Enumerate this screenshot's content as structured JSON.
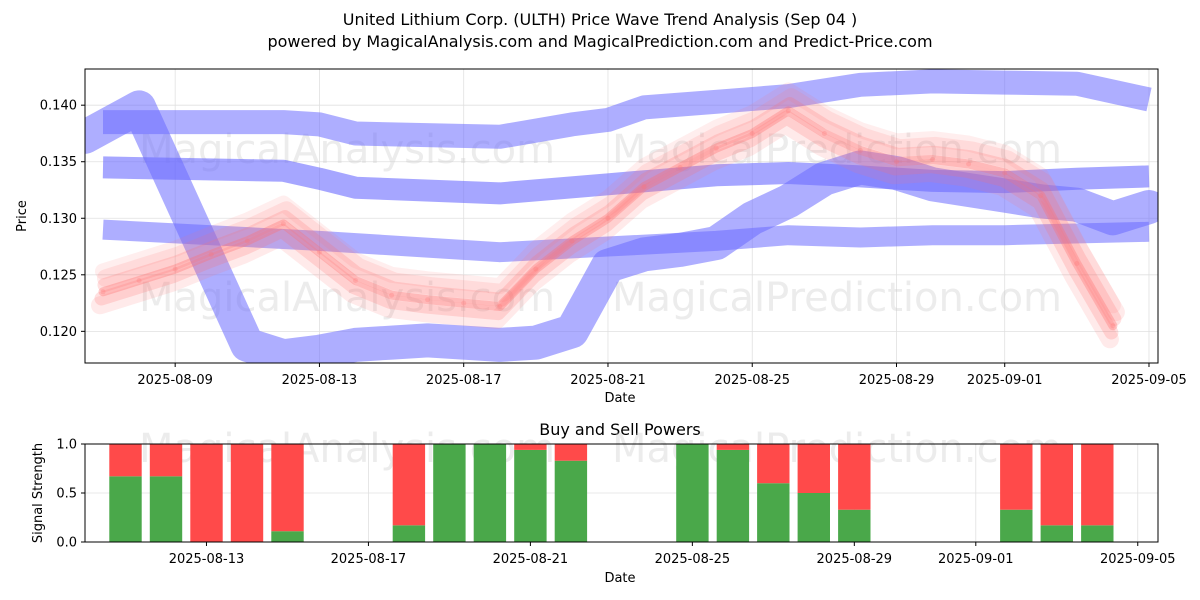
{
  "title_line1": "United Lithium Corp. (ULTH) Price Wave Trend Analysis (Sep 04 )",
  "title_line2": "powered by MagicalAnalysis.com and MagicalPrediction.com and Predict-Price.com",
  "watermarks": [
    "MagicalAnalysis.com",
    "MagicalPrediction.com"
  ],
  "colors": {
    "buy": "#4aa84a",
    "sell": "#ff4a4a",
    "band": "#6b6bff",
    "wave": "#ff7070"
  },
  "chart_data": [
    {
      "type": "line",
      "title": "",
      "xlabel": "Date",
      "ylabel": "Price",
      "x_range": [
        "2025-08-06T12:00",
        "2025-09-05T06:00"
      ],
      "ylim": [
        0.1172,
        0.1432
      ],
      "x_ticks": [
        "2025-08-09",
        "2025-08-13",
        "2025-08-17",
        "2025-08-21",
        "2025-08-25",
        "2025-08-29",
        "2025-09-01",
        "2025-09-05"
      ],
      "y_ticks": [
        "0.120",
        "0.125",
        "0.130",
        "0.135",
        "0.140"
      ],
      "grid": true,
      "series": [
        {
          "name": "upper band",
          "x": [
            "2025-08-07",
            "2025-08-12",
            "2025-08-13",
            "2025-08-14",
            "2025-08-18",
            "2025-08-20",
            "2025-08-21",
            "2025-08-22",
            "2025-08-24",
            "2025-08-26",
            "2025-08-28",
            "2025-08-30",
            "2025-09-01",
            "2025-09-03",
            "2025-09-05"
          ],
          "y": [
            0.1385,
            0.1385,
            0.1383,
            0.1375,
            0.1372,
            0.1383,
            0.1387,
            0.1398,
            0.1403,
            0.1408,
            0.1418,
            0.1421,
            0.142,
            0.1419,
            0.1405
          ]
        },
        {
          "name": "middle band",
          "x": [
            "2025-08-07",
            "2025-08-12",
            "2025-08-13",
            "2025-08-14",
            "2025-08-18",
            "2025-08-21",
            "2025-08-24",
            "2025-08-26",
            "2025-08-28",
            "2025-08-30",
            "2025-09-01",
            "2025-09-03",
            "2025-09-05"
          ],
          "y": [
            0.1345,
            0.1342,
            0.1335,
            0.1327,
            0.1322,
            0.133,
            0.1338,
            0.134,
            0.1337,
            0.1333,
            0.1332,
            0.1335,
            0.1337
          ]
        },
        {
          "name": "lower band",
          "x": [
            "2025-08-07",
            "2025-08-13",
            "2025-08-18",
            "2025-08-21",
            "2025-08-24",
            "2025-08-26",
            "2025-08-28",
            "2025-08-30",
            "2025-09-01",
            "2025-09-05"
          ],
          "y": [
            0.129,
            0.128,
            0.127,
            0.1275,
            0.128,
            0.1285,
            0.1283,
            0.1285,
            0.1285,
            0.1288
          ]
        },
        {
          "name": "wave forecast",
          "x": [
            "2025-08-06T12:00",
            "2025-08-08",
            "2025-08-10",
            "2025-08-11",
            "2025-08-12",
            "2025-08-13",
            "2025-08-14",
            "2025-08-15",
            "2025-08-16",
            "2025-08-17",
            "2025-08-18",
            "2025-08-19",
            "2025-08-20",
            "2025-08-21",
            "2025-08-22",
            "2025-08-23",
            "2025-08-24",
            "2025-08-25",
            "2025-08-26",
            "2025-08-27",
            "2025-08-28",
            "2025-08-29",
            "2025-08-30",
            "2025-08-31",
            "2025-09-01",
            "2025-09-02",
            "2025-09-03",
            "2025-09-04",
            "2025-09-05"
          ],
          "y": [
            0.1372,
            0.1398,
            0.1258,
            0.1188,
            0.1178,
            0.1182,
            0.1188,
            0.119,
            0.1192,
            0.119,
            0.1188,
            0.119,
            0.12,
            0.1258,
            0.1268,
            0.1272,
            0.1278,
            0.13,
            0.1315,
            0.1335,
            0.1345,
            0.134,
            0.133,
            0.1325,
            0.132,
            0.1315,
            0.1312,
            0.13,
            0.131
          ]
        },
        {
          "name": "price trend",
          "x": [
            "2025-08-07",
            "2025-08-08",
            "2025-08-09",
            "2025-08-10",
            "2025-08-11",
            "2025-08-12",
            "2025-08-13",
            "2025-08-14",
            "2025-08-15",
            "2025-08-16",
            "2025-08-17",
            "2025-08-18",
            "2025-08-19",
            "2025-08-20",
            "2025-08-21",
            "2025-08-22",
            "2025-08-23",
            "2025-08-24",
            "2025-08-25",
            "2025-08-26",
            "2025-08-27",
            "2025-08-28",
            "2025-08-29",
            "2025-08-30",
            "2025-08-31",
            "2025-09-01",
            "2025-09-02",
            "2025-09-03",
            "2025-09-04"
          ],
          "y": [
            0.1235,
            0.1245,
            0.1255,
            0.1268,
            0.128,
            0.1295,
            0.127,
            0.1245,
            0.1232,
            0.1228,
            0.1225,
            0.1222,
            0.1255,
            0.128,
            0.13,
            0.1328,
            0.1345,
            0.1362,
            0.1375,
            0.1395,
            0.1375,
            0.136,
            0.135,
            0.1352,
            0.1348,
            0.134,
            0.132,
            0.126,
            0.1205
          ]
        }
      ]
    },
    {
      "type": "bar",
      "title": "Buy and Sell Powers",
      "xlabel": "Date",
      "ylabel": "Signal Strength",
      "ylim": [
        0,
        1
      ],
      "x_range": [
        "2025-08-10T00:00",
        "2025-09-05T12:00"
      ],
      "x_ticks": [
        "2025-08-13",
        "2025-08-17",
        "2025-08-21",
        "2025-08-25",
        "2025-08-29",
        "2025-09-01",
        "2025-09-05"
      ],
      "y_ticks": [
        "0.0",
        "0.5",
        "1.0"
      ],
      "grid": true,
      "categories": [
        "2025-08-11",
        "2025-08-12",
        "2025-08-13",
        "2025-08-14",
        "2025-08-15",
        "2025-08-18",
        "2025-08-19",
        "2025-08-20",
        "2025-08-21",
        "2025-08-22",
        "2025-08-25",
        "2025-08-26",
        "2025-08-27",
        "2025-08-28",
        "2025-08-29",
        "2025-09-02",
        "2025-09-03",
        "2025-09-04"
      ],
      "series": [
        {
          "name": "Buy",
          "values": [
            0.67,
            0.67,
            0.0,
            0.0,
            0.11,
            0.17,
            1.0,
            1.0,
            0.94,
            0.83,
            1.0,
            0.94,
            0.6,
            0.5,
            0.33,
            0.33,
            0.17,
            0.17
          ]
        },
        {
          "name": "Sell",
          "values": [
            0.33,
            0.33,
            1.0,
            1.0,
            0.89,
            0.83,
            0.0,
            0.0,
            0.06,
            0.17,
            0.0,
            0.06,
            0.4,
            0.5,
            0.67,
            0.67,
            0.83,
            0.83
          ]
        }
      ]
    }
  ]
}
